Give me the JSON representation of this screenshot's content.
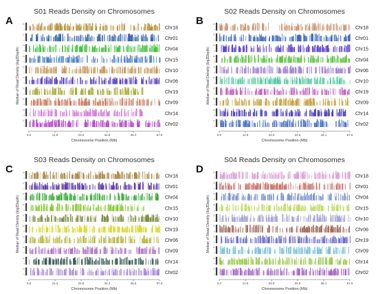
{
  "chart_data": [
    {
      "type": "bar",
      "panel": "A",
      "title": "S01 Reads Density on Chromosomes",
      "ylabel": "Median of Read Density (log2Depth)",
      "xlabel": "Chromosome Position (Mb)",
      "xticks": [
        "0.0",
        "11.6",
        "23.2",
        "34.8",
        "46.4",
        "57.6"
      ],
      "xlim": [
        0,
        57.6
      ],
      "tracks": [
        {
          "name": "Chr18",
          "color": "#b8903a",
          "ranges": [
            [
              0,
              57.6
            ]
          ]
        },
        {
          "name": "Chr01",
          "color": "#2f5fa8",
          "ranges": [
            [
              0,
              57.6
            ]
          ]
        },
        {
          "name": "Chr04",
          "color": "#3fbf3a",
          "ranges": [
            [
              0,
              57.6
            ]
          ]
        },
        {
          "name": "Chr15",
          "color": "#4a7fc0",
          "ranges": [
            [
              0,
              57.6
            ]
          ]
        },
        {
          "name": "Chr10",
          "color": "#c89a5a",
          "ranges": [
            [
              0,
              57.6
            ]
          ]
        },
        {
          "name": "Chr06",
          "color": "#5a3fc0",
          "ranges": [
            [
              0,
              57.6
            ]
          ]
        },
        {
          "name": "Chr19",
          "color": "#a8a838",
          "ranges": [
            [
              0,
              50
            ]
          ]
        },
        {
          "name": "Chr09",
          "color": "#c87a5a",
          "ranges": [
            [
              0,
              57.6
            ]
          ]
        },
        {
          "name": "Chr14",
          "color": "#d07ad8",
          "ranges": [
            [
              0,
              50
            ]
          ]
        },
        {
          "name": "Chr02",
          "color": "#b040c8",
          "ranges": [
            [
              0,
              57.6
            ]
          ]
        }
      ]
    },
    {
      "type": "bar",
      "panel": "B",
      "title": "S02 Reads Density on Chromosomes",
      "ylabel": "Median of Read Density (log2Depth)",
      "xlabel": "Chromosome Position (Mb)",
      "xticks": [
        "0.0",
        "11.5",
        "23.0",
        "34.6",
        "46.1",
        "57.6"
      ],
      "xlim": [
        0,
        57.6
      ],
      "tracks": [
        {
          "name": "Chr18",
          "color": "#c8906a",
          "ranges": [
            [
              0,
              22
            ],
            [
              26,
              57.6
            ]
          ]
        },
        {
          "name": "Chr01",
          "color": "#3a68b8",
          "ranges": [
            [
              0,
              57.6
            ]
          ]
        },
        {
          "name": "Chr15",
          "color": "#5a40c8",
          "ranges": [
            [
              0,
              57.6
            ]
          ]
        },
        {
          "name": "Chr04",
          "color": "#58c040",
          "ranges": [
            [
              0,
              57.6
            ]
          ]
        },
        {
          "name": "Chr06",
          "color": "#a080d0",
          "ranges": [
            [
              0,
              57.6
            ]
          ]
        },
        {
          "name": "Chr10",
          "color": "#50c8a0",
          "ranges": [
            [
              0,
              57.6
            ]
          ]
        },
        {
          "name": "Chr19",
          "color": "#c060c0",
          "ranges": [
            [
              0,
              57.6
            ]
          ]
        },
        {
          "name": "Chr09",
          "color": "#c8a040",
          "ranges": [
            [
              0,
              57.6
            ]
          ]
        },
        {
          "name": "Chr14",
          "color": "#4a40b8",
          "ranges": [
            [
              0,
              57.6
            ]
          ]
        },
        {
          "name": "Chr02",
          "color": "#4870c0",
          "ranges": [
            [
              0,
              57.6
            ]
          ]
        }
      ]
    },
    {
      "type": "bar",
      "panel": "C",
      "title": "S03 Reads Density on Chromosomes",
      "ylabel": "Median of Read Density (log2Depth)",
      "xlabel": "Chromosome Position (Mb)",
      "xticks": [
        "0.0",
        "11.4",
        "22.8",
        "34.2",
        "45.6",
        "57.0"
      ],
      "xlim": [
        0,
        57.0
      ],
      "tracks": [
        {
          "name": "Chr18",
          "color": "#a88848",
          "ranges": [
            [
              0,
              57.0
            ]
          ]
        },
        {
          "name": "Chr01",
          "color": "#5838a8",
          "ranges": [
            [
              0,
              57.0
            ]
          ]
        },
        {
          "name": "Chr04",
          "color": "#38a838",
          "ranges": [
            [
              0,
              57.0
            ]
          ]
        },
        {
          "name": "Chr15",
          "color": "#88c830",
          "ranges": [
            [
              0,
              50
            ]
          ]
        },
        {
          "name": "Chr10",
          "color": "#788838",
          "ranges": [
            [
              0,
              57.0
            ]
          ]
        },
        {
          "name": "Chr19",
          "color": "#d8d830",
          "ranges": [
            [
              0,
              57.0
            ]
          ]
        },
        {
          "name": "Chr06",
          "color": "#b8b848",
          "ranges": [
            [
              0,
              57.0
            ]
          ]
        },
        {
          "name": "Chr09",
          "color": "#b070c0",
          "ranges": [
            [
              0,
              57.0
            ]
          ]
        },
        {
          "name": "Chr14",
          "color": "#385850",
          "ranges": [
            [
              0,
              57.0
            ]
          ]
        },
        {
          "name": "Chr02",
          "color": "#a888d8",
          "ranges": [
            [
              0,
              57.0
            ]
          ]
        }
      ]
    },
    {
      "type": "bar",
      "panel": "D",
      "title": "S04 Reads Density on Chromosomes",
      "ylabel": "Median of Read Density (log2Depth)",
      "xlabel": "Chromosome Position (Mb)",
      "xticks": [
        "0.0",
        "11.5",
        "23.0",
        "34.6",
        "46.1",
        "57.6"
      ],
      "xlim": [
        0,
        57.6
      ],
      "tracks": [
        {
          "name": "Chr18",
          "color": "#d8a0d8",
          "ranges": [
            [
              0,
              57.6
            ]
          ]
        },
        {
          "name": "Chr01",
          "color": "#c87068",
          "ranges": [
            [
              0,
              57.6
            ]
          ]
        },
        {
          "name": "Chr04",
          "color": "#7890c8",
          "ranges": [
            [
              0,
              57.6
            ]
          ]
        },
        {
          "name": "Chr15",
          "color": "#c0d860",
          "ranges": [
            [
              0,
              57.6
            ]
          ]
        },
        {
          "name": "Chr10",
          "color": "#a0a0d8",
          "ranges": [
            [
              0,
              57.6
            ]
          ]
        },
        {
          "name": "Chr06",
          "color": "#a06858",
          "ranges": [
            [
              0,
              57.6
            ]
          ]
        },
        {
          "name": "Chr19",
          "color": "#6868c8",
          "ranges": [
            [
              0,
              57.6
            ]
          ]
        },
        {
          "name": "Chr09",
          "color": "#78c0d8",
          "ranges": [
            [
              0,
              57.6
            ]
          ]
        },
        {
          "name": "Chr14",
          "color": "#98c848",
          "ranges": [
            [
              0,
              57.6
            ]
          ]
        },
        {
          "name": "Chr02",
          "color": "#a060c0",
          "ranges": [
            [
              0,
              57.6
            ]
          ]
        }
      ]
    }
  ]
}
